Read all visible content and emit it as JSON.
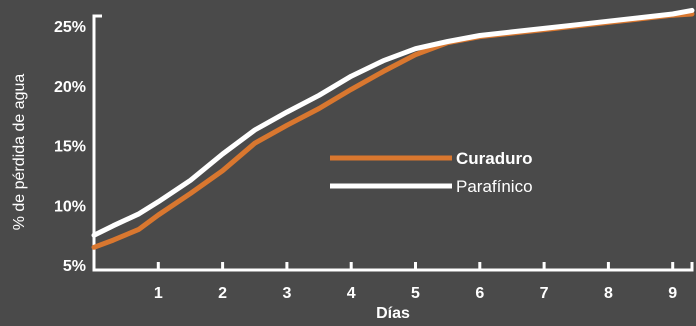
{
  "colors": {
    "background": "#4a4a4a",
    "axis": "#ffffff",
    "series_curaduro": "#d9772f",
    "series_parafinico": "#ffffff"
  },
  "chart_data": {
    "type": "line",
    "title": "",
    "xlabel": "Días",
    "ylabel": "% de pérdida de agua",
    "xlim": [
      0,
      9.3
    ],
    "ylim": [
      4.6,
      26
    ],
    "x_ticks": [
      1,
      2,
      3,
      4,
      5,
      6,
      7,
      8,
      9
    ],
    "y_ticks": [
      5,
      10,
      15,
      20,
      25
    ],
    "y_tick_labels": [
      "5%",
      "10%",
      "15%",
      "20%",
      "25%"
    ],
    "legend": "center-right",
    "grid": false,
    "series": [
      {
        "name": "Curaduro",
        "color": "#d9772f",
        "x": [
          0,
          0.3,
          0.7,
          1.0,
          1.5,
          2.0,
          2.5,
          3.0,
          3.5,
          4.0,
          4.5,
          5.0,
          5.5,
          6.0,
          6.5,
          7.0,
          7.5,
          8.0,
          8.5,
          9.0,
          9.3
        ],
        "y": [
          6.5,
          7.1,
          8.0,
          9.2,
          11.0,
          12.9,
          15.2,
          16.7,
          18.1,
          19.7,
          21.2,
          22.6,
          23.6,
          24.1,
          24.4,
          24.7,
          25.0,
          25.3,
          25.6,
          25.9,
          26.0
        ]
      },
      {
        "name": "Parafínico",
        "color": "#ffffff",
        "x": [
          0,
          0.3,
          0.7,
          1.0,
          1.5,
          2.0,
          2.5,
          3.0,
          3.5,
          4.0,
          4.5,
          5.0,
          5.5,
          6.0,
          6.5,
          7.0,
          7.5,
          8.0,
          8.5,
          9.0,
          9.3
        ],
        "y": [
          7.5,
          8.3,
          9.3,
          10.3,
          12.1,
          14.3,
          16.3,
          17.8,
          19.2,
          20.8,
          22.1,
          23.1,
          23.7,
          24.2,
          24.5,
          24.8,
          25.1,
          25.4,
          25.7,
          26.0,
          26.3
        ]
      }
    ]
  }
}
